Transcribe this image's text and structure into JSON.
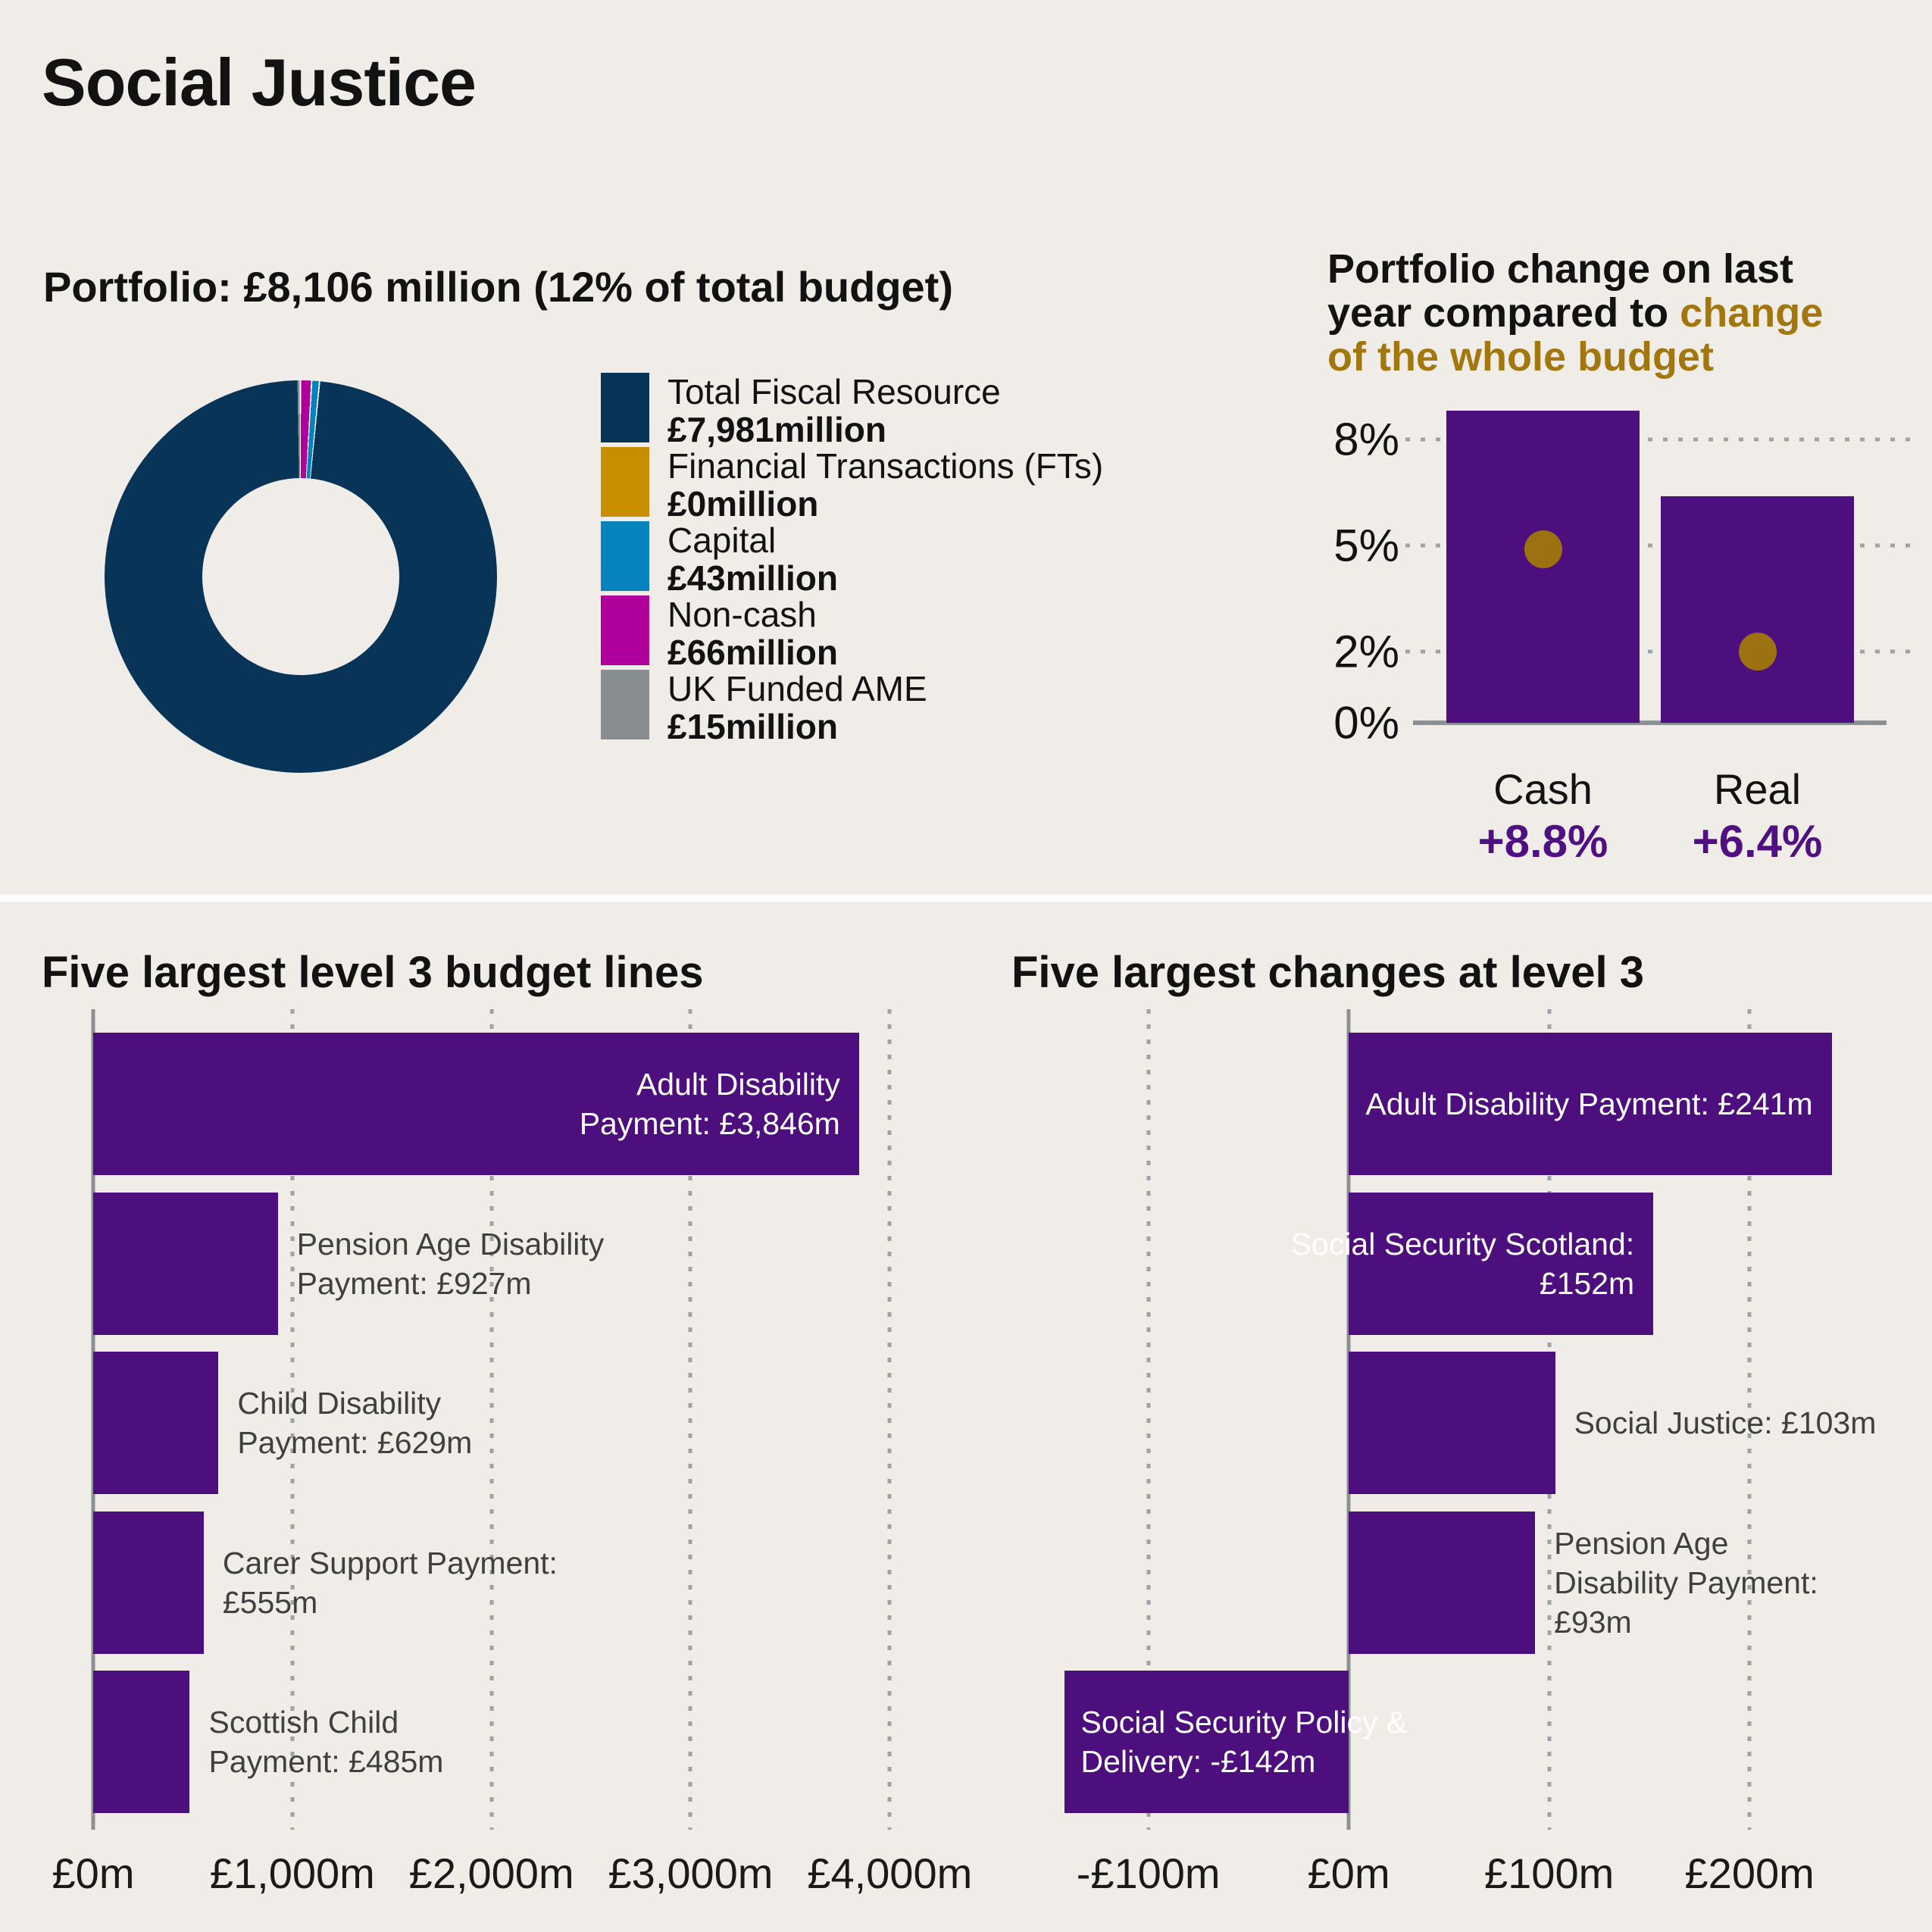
{
  "header": {
    "title": "Social Justice"
  },
  "colors": {
    "bg": "#f0ede9",
    "ink": "#121212",
    "navy": "#083457",
    "gold-swatch": "#c98d00",
    "blue": "#0683bd",
    "magenta": "#b0009c",
    "gray-ame": "#878d8f",
    "purple": "#4d0e7e",
    "purple-text": "#4f1182",
    "gold-dot": "#9c7110",
    "gold-text": "#a2770e",
    "axis": "#8b9193",
    "grid": "#9fa3a5",
    "label": "#3f4040"
  },
  "chart_data": [
    {
      "id": "portfolio_donut",
      "type": "pie",
      "title": "Portfolio: £8,106 million (12% of total budget)",
      "unit": "£ million",
      "total_label": "£8,106 million",
      "share_of_total_budget": "12%",
      "hole_ratio": 0.5,
      "legend_position": "right",
      "slices": [
        {
          "label": "Total Fiscal Resource",
          "value": 7981,
          "value_label": "£7,981million",
          "color": "#083457"
        },
        {
          "label": "Financial Transactions (FTs)",
          "value": 0,
          "value_label": "£0million",
          "color": "#c98d00"
        },
        {
          "label": "Capital",
          "value": 43,
          "value_label": "£43million",
          "color": "#0683bd"
        },
        {
          "label": "Non-cash",
          "value": 66,
          "value_label": "£66million",
          "color": "#b0009c"
        },
        {
          "label": "UK Funded AME",
          "value": 15,
          "value_label": "£15million",
          "color": "#878d8f"
        }
      ],
      "render_order": [
        4,
        3,
        2,
        1,
        0
      ],
      "start_angle_deg": -1
    },
    {
      "id": "pct_change",
      "type": "bar",
      "title_black": "Portfolio change on last year compared to ",
      "title_gold": "change of the whole budget",
      "categories": [
        "Cash",
        "Real"
      ],
      "series": [
        {
          "name": "Portfolio change on last year",
          "style": "bar",
          "values": [
            8.8,
            6.4
          ],
          "labels": [
            "+8.8%",
            "+6.4%"
          ],
          "color": "#4d0e7e"
        },
        {
          "name": "Change of the whole budget",
          "style": "point",
          "values": [
            4.9,
            2.0
          ],
          "color": "#9c7110"
        }
      ],
      "yticks": [
        {
          "value": 8,
          "label": "8%"
        },
        {
          "value": 5,
          "label": "5%"
        },
        {
          "value": 2,
          "label": "2%"
        },
        {
          "value": 0,
          "label": "0%"
        }
      ],
      "ylim": [
        0,
        11.2
      ],
      "grid": "dotted-horizontal"
    },
    {
      "id": "budget_lines",
      "type": "bar-horizontal",
      "title": "Five largest level 3 budget lines",
      "unit": "£m",
      "bar_color": "#4d0e7e",
      "xlim": [
        0,
        4250
      ],
      "grid": "dotted-vertical",
      "bars": [
        {
          "name": "Adult Disability Payment",
          "value": 3846,
          "label_placement": "inside",
          "lines": [
            "Adult Disability",
            "Payment: £3,846m"
          ]
        },
        {
          "name": "Pension Age Disability Payment",
          "value": 927,
          "label_placement": "outside",
          "lines": [
            "Pension Age Disability",
            "Payment: £927m"
          ]
        },
        {
          "name": "Child Disability Payment",
          "value": 629,
          "label_placement": "outside",
          "lines": [
            "Child Disability",
            "Payment: £629m"
          ]
        },
        {
          "name": "Carer Support Payment",
          "value": 555,
          "label_placement": "outside",
          "lines": [
            "Carer Support Payment:",
            "£555m"
          ]
        },
        {
          "name": "Scottish Child Payment",
          "value": 485,
          "label_placement": "outside",
          "lines": [
            "Scottish Child",
            "Payment: £485m"
          ]
        }
      ],
      "xticks": [
        {
          "value": 0,
          "label": "£0m"
        },
        {
          "value": 1000,
          "label": "£1,000m"
        },
        {
          "value": 2000,
          "label": "£2,000m"
        },
        {
          "value": 3000,
          "label": "£3,000m"
        },
        {
          "value": 4000,
          "label": "£4,000m"
        }
      ]
    },
    {
      "id": "level3_changes",
      "type": "bar-horizontal",
      "title": "Five largest changes at level 3",
      "unit": "£m",
      "bar_color": "#4d0e7e",
      "xlim": [
        -147.5,
        283.5
      ],
      "grid": "dotted-vertical",
      "bars": [
        {
          "name": "Adult Disability Payment",
          "value": 241,
          "label_placement": "inside",
          "lines": [
            "Adult Disability Payment: £241m"
          ]
        },
        {
          "name": "Social Security Scotland",
          "value": 152,
          "label_placement": "inside",
          "lines": [
            "Social Security Scotland:",
            "£152m"
          ]
        },
        {
          "name": "Social Justice",
          "value": 103,
          "label_placement": "outside",
          "lines": [
            "Social Justice: £103m"
          ]
        },
        {
          "name": "Pension Age Disability Payment",
          "value": 93,
          "label_placement": "outside",
          "lines": [
            "Pension Age",
            "Disability Payment:",
            "£93m"
          ]
        },
        {
          "name": "Social Security Policy & Delivery",
          "value": -142,
          "label_placement": "inside-negative",
          "lines": [
            "Social Security Policy &",
            "Delivery: -£142m"
          ]
        }
      ],
      "xticks": [
        {
          "value": -100,
          "label": "-£100m"
        },
        {
          "value": 0,
          "label": "£0m"
        },
        {
          "value": 100,
          "label": "£100m"
        },
        {
          "value": 200,
          "label": "£200m"
        }
      ]
    }
  ]
}
